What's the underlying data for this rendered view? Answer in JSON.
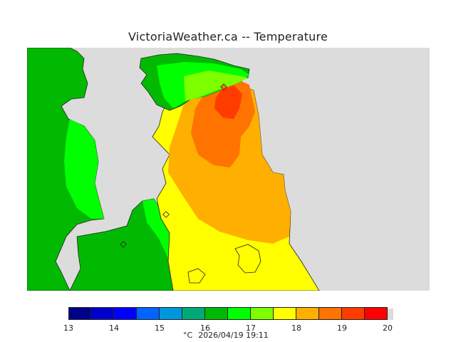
{
  "title": "VictoriaWeather.ca -- Temperature",
  "colors": {
    "land": "#dcdcdc",
    "outline": "#222222",
    "scale": [
      "#00008b",
      "#0000cd",
      "#0000ff",
      "#0064ff",
      "#0096dc",
      "#00aa78",
      "#00b900",
      "#00ff00",
      "#7dff00",
      "#ffff00",
      "#ffaf00",
      "#ff7300",
      "#ff3c00",
      "#ff0000"
    ]
  },
  "legend": {
    "ticks": [
      "13",
      "14",
      "15",
      "16",
      "17",
      "18",
      "19",
      "20"
    ],
    "unit": "°C",
    "timestamp": "2026/04/19 19:11"
  },
  "stations": [
    "station-west",
    "station-south",
    "station-victoria"
  ]
}
